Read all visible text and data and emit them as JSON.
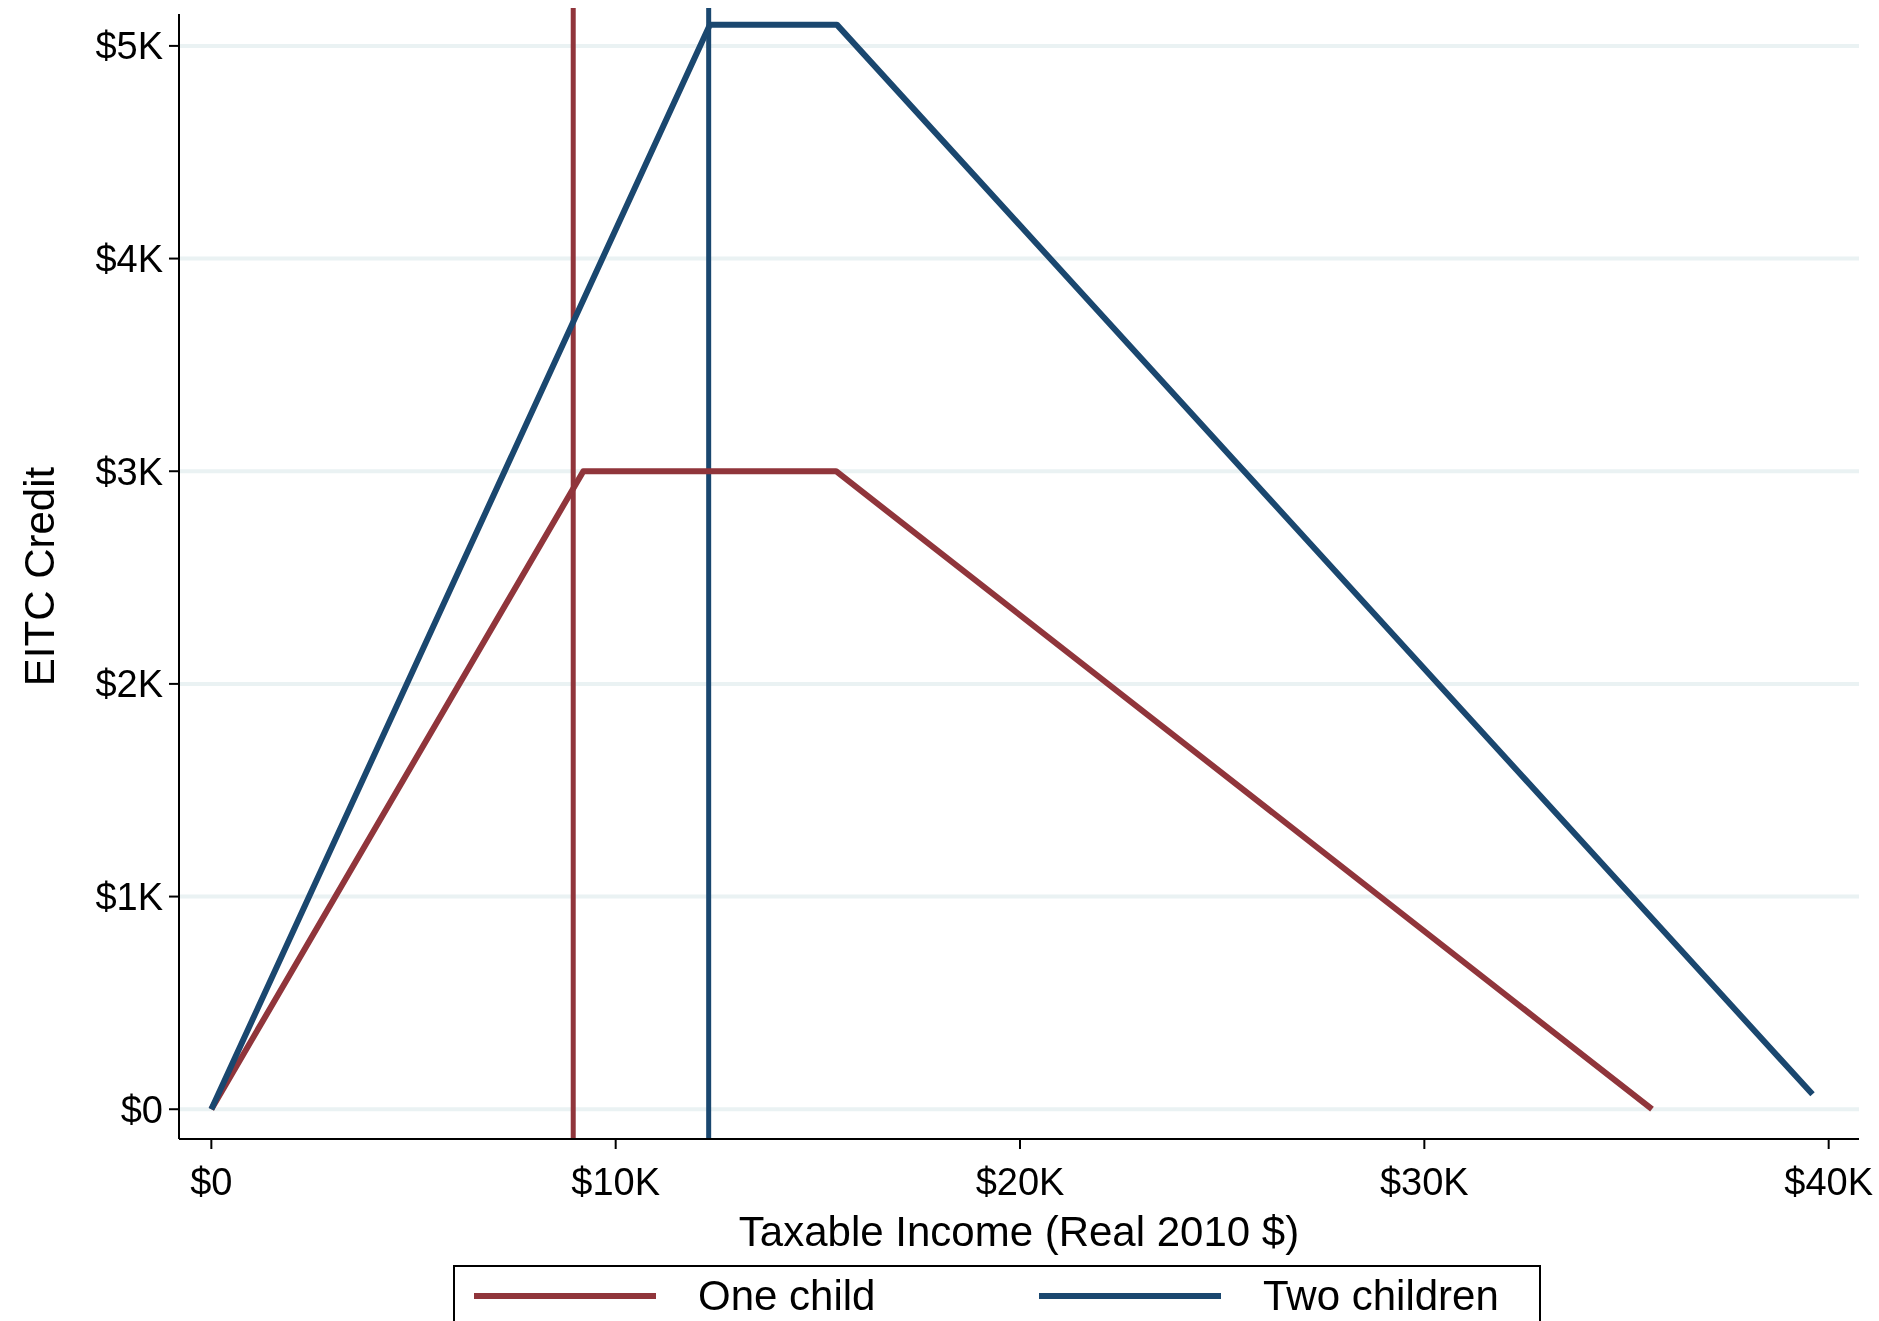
{
  "chart_data": {
    "type": "line",
    "xlabel": "Taxable Income (Real 2010 $)",
    "ylabel": "EITC Credit",
    "xlim": [
      -800,
      40750
    ],
    "ylim": [
      -140,
      5150
    ],
    "xticks": [
      {
        "value": 0,
        "label": "$0"
      },
      {
        "value": 10000,
        "label": "$10K"
      },
      {
        "value": 20000,
        "label": "$20K"
      },
      {
        "value": 30000,
        "label": "$30K"
      },
      {
        "value": 40000,
        "label": "$40K"
      }
    ],
    "yticks": [
      {
        "value": 0,
        "label": "$0"
      },
      {
        "value": 1000,
        "label": "$1K"
      },
      {
        "value": 2000,
        "label": "$2K"
      },
      {
        "value": 3000,
        "label": "$3K"
      },
      {
        "value": 4000,
        "label": "$4K"
      },
      {
        "value": 5000,
        "label": "$5K"
      }
    ],
    "series": [
      {
        "name": "One child",
        "color": "#90353b",
        "x": [
          0,
          9200,
          15450,
          35630
        ],
        "values": [
          0,
          3000,
          3000,
          0
        ]
      },
      {
        "name": "Two children",
        "color": "#1a476f",
        "x": [
          0,
          12330,
          15470,
          39600
        ],
        "values": [
          0,
          5100,
          5100,
          70
        ]
      }
    ],
    "ref_lines": [
      {
        "axis": "x",
        "value": 8950,
        "label": null,
        "color": "#90353b"
      },
      {
        "axis": "x",
        "value": 12300,
        "label": null,
        "color": "#1a476f"
      }
    ],
    "grid": "y",
    "legend": "bottom",
    "marker": "none",
    "line_style": "solid"
  }
}
